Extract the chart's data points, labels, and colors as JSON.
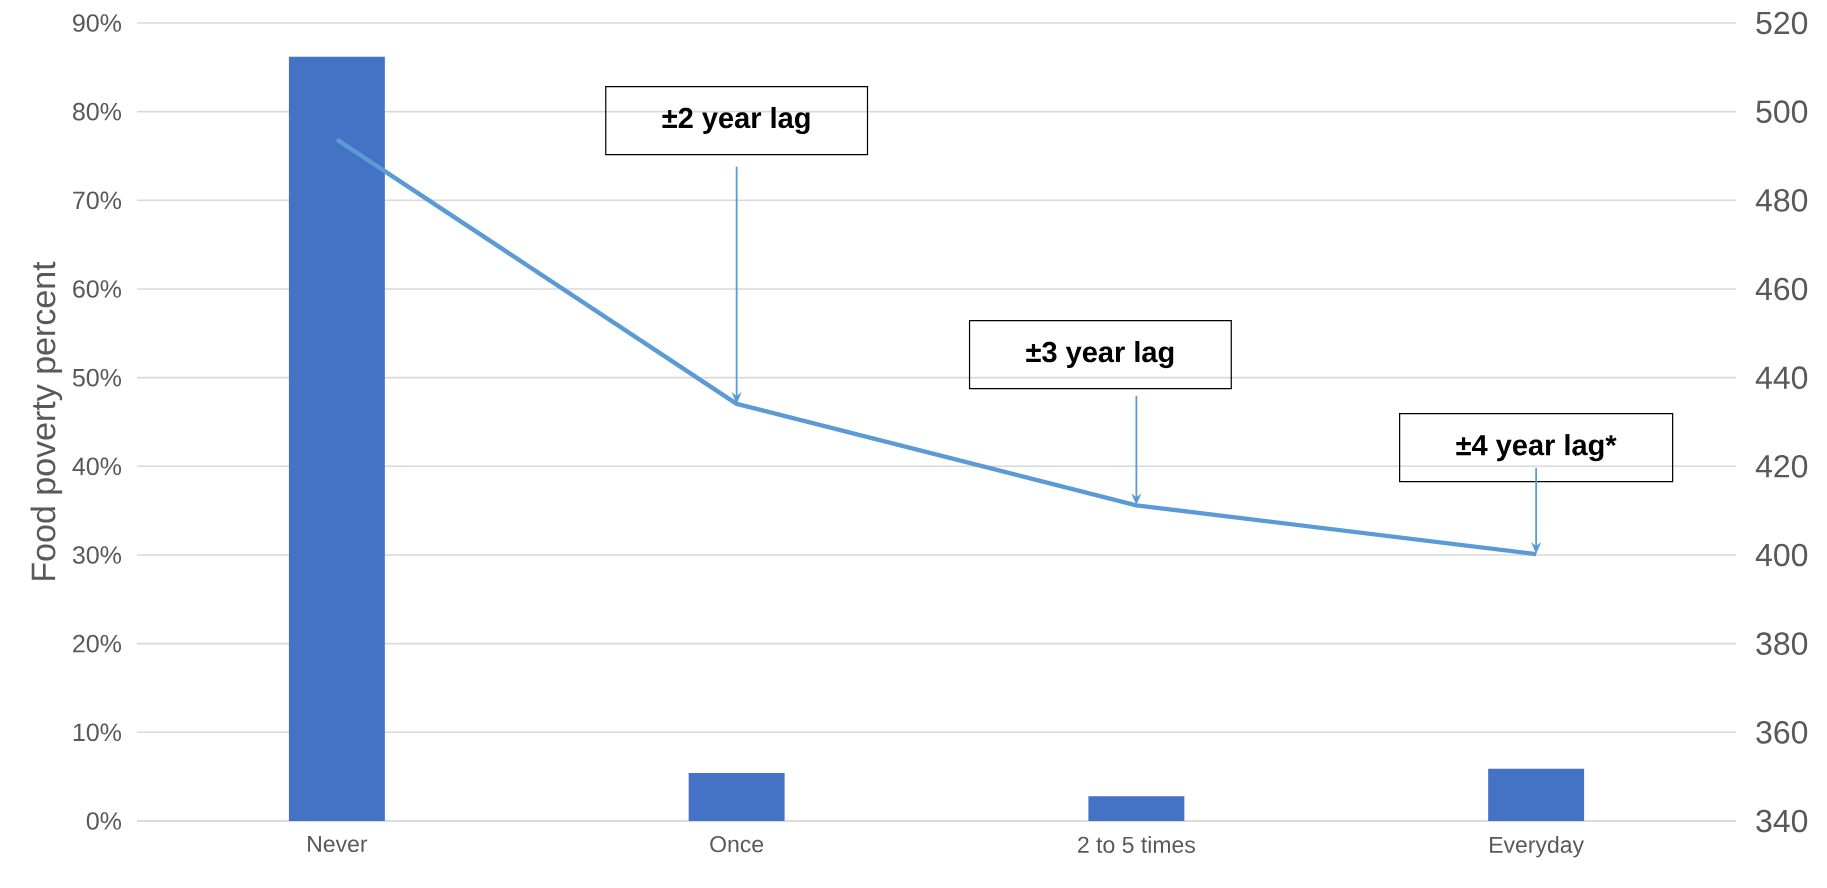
{
  "chart_data": {
    "type": "bar",
    "ylabel": "Food poverty percent",
    "categories": [
      "Never",
      "Once",
      "2 to 5 times",
      "Everyday"
    ],
    "series": [
      {
        "color": "#4472c4",
        "values": [
          86.2,
          5.4,
          2.8,
          5.9
        ]
      },
      {
        "type": "line",
        "axis": "y2",
        "color": "#5b9bd5",
        "values": [
          493.7,
          434.1,
          411.2,
          400.2
        ]
      }
    ],
    "ylim": [
      0,
      90
    ],
    "yticks": [
      {
        "value": 0,
        "label": "0%"
      },
      {
        "value": 10,
        "label": "10%"
      },
      {
        "value": 20,
        "label": "20%"
      },
      {
        "value": 30,
        "label": "30%"
      },
      {
        "value": 40,
        "label": "40%"
      },
      {
        "value": 50,
        "label": "50%"
      },
      {
        "value": 60,
        "label": "60%"
      },
      {
        "value": 70,
        "label": "70%"
      },
      {
        "value": 80,
        "label": "80%"
      },
      {
        "value": 90,
        "label": "90%"
      }
    ],
    "y2lim": [
      340,
      520
    ],
    "y2ticks": [
      340,
      360,
      380,
      400,
      420,
      440,
      460,
      480,
      500,
      520
    ],
    "grid": "y",
    "annotations": [
      {
        "text": "±2 year lag",
        "x": "Once",
        "y": 47.0
      },
      {
        "text": "±3 year lag",
        "x": "2 to 5 times",
        "y": 35.6
      },
      {
        "text": "±4 year lag*",
        "x": "Everyday",
        "y": 30.1
      }
    ]
  }
}
